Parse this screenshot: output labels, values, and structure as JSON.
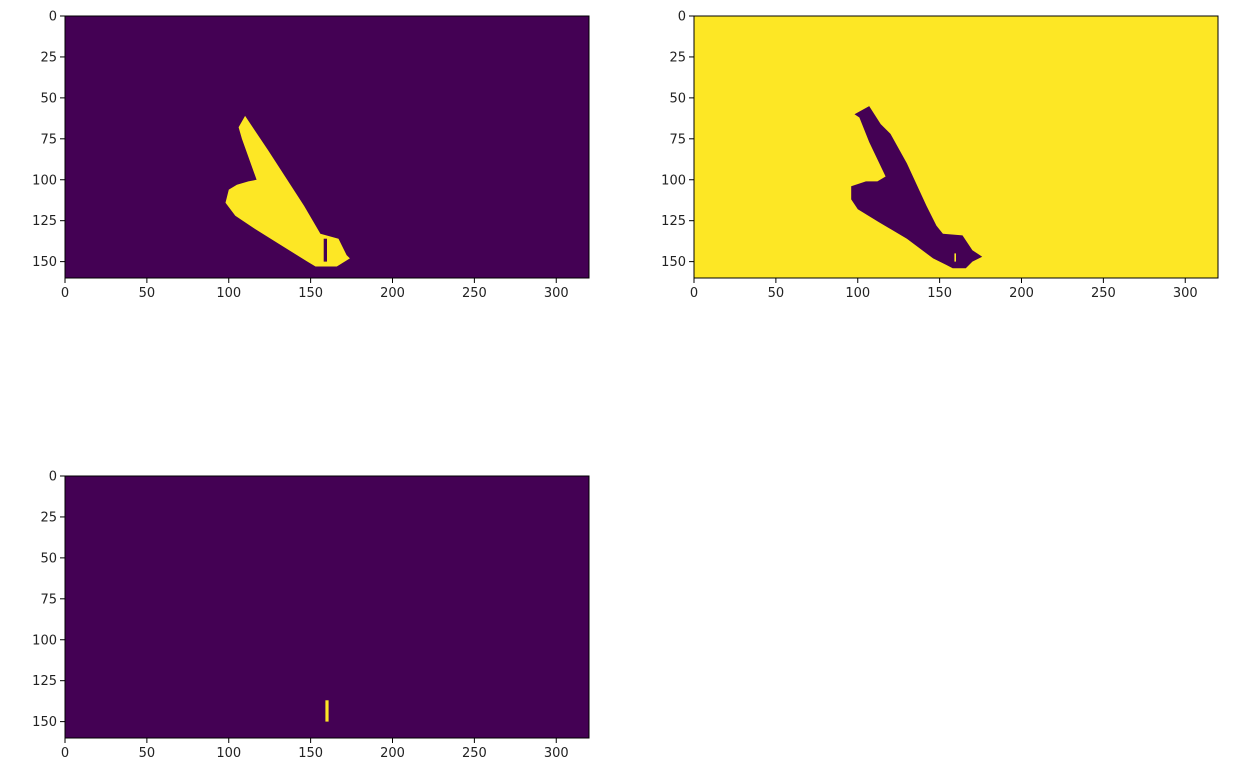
{
  "colors": {
    "background": "#440154",
    "foreground": "#fde725",
    "axis": "#000000",
    "tick_text": "#222222"
  },
  "chart_data": [
    {
      "type": "heatmap",
      "id": "top-left",
      "colormap": "viridis binary mask",
      "background_value": 0,
      "foreground_value": 1,
      "xlim": [
        0,
        320
      ],
      "ylim": [
        160,
        0
      ],
      "x_ticks": [
        0,
        50,
        100,
        150,
        200,
        250,
        300
      ],
      "y_ticks": [
        0,
        25,
        50,
        75,
        100,
        125,
        150
      ],
      "regions": [
        {
          "fill": "foreground",
          "points": [
            [
              110,
              61
            ],
            [
              124,
              82
            ],
            [
              146,
              116
            ],
            [
              156,
              133
            ],
            [
              167,
              136
            ],
            [
              172,
              146
            ],
            [
              174,
              148
            ],
            [
              166,
              153
            ],
            [
              153,
              153
            ],
            [
              148,
              150
            ],
            [
              132,
              140
            ],
            [
              116,
              130
            ],
            [
              104,
              122
            ],
            [
              98,
              114
            ],
            [
              100,
              106
            ],
            [
              105,
              103
            ],
            [
              112,
              101
            ],
            [
              117,
              100
            ],
            [
              108,
              75
            ],
            [
              106,
              68
            ]
          ]
        },
        {
          "fill": "background",
          "points": [
            [
              158,
              136
            ],
            [
              160,
              136
            ],
            [
              160,
              150
            ],
            [
              158,
              150
            ]
          ]
        }
      ]
    },
    {
      "type": "heatmap",
      "id": "top-right",
      "colormap": "viridis binary mask",
      "background_value": 1,
      "foreground_value": 0,
      "xlim": [
        0,
        320
      ],
      "ylim": [
        160,
        0
      ],
      "x_ticks": [
        0,
        50,
        100,
        150,
        200,
        250,
        300
      ],
      "y_ticks": [
        0,
        25,
        50,
        75,
        100,
        125,
        150
      ],
      "regions": [
        {
          "fill": "foreground",
          "points": [
            [
              107,
              55
            ],
            [
              114,
              66
            ],
            [
              120,
              72
            ],
            [
              130,
              90
            ],
            [
              142,
              116
            ],
            [
              148,
              128
            ],
            [
              152,
              133
            ],
            [
              164,
              134
            ],
            [
              170,
              143
            ],
            [
              176,
              147
            ],
            [
              170,
              150
            ],
            [
              166,
              154
            ],
            [
              158,
              154
            ],
            [
              154,
              152
            ],
            [
              146,
              148
            ],
            [
              130,
              136
            ],
            [
              113,
              126
            ],
            [
              100,
              118
            ],
            [
              96,
              112
            ],
            [
              96,
              104
            ],
            [
              105,
              101
            ],
            [
              112,
              101
            ],
            [
              117,
              98
            ],
            [
              107,
              77
            ],
            [
              101,
              62
            ],
            [
              98,
              60
            ]
          ]
        },
        {
          "fill": "background",
          "points": [
            [
              159,
              145
            ],
            [
              160,
              145
            ],
            [
              160,
              150
            ],
            [
              159,
              150
            ]
          ]
        }
      ]
    },
    {
      "type": "heatmap",
      "id": "bottom-left",
      "colormap": "viridis binary mask",
      "background_value": 0,
      "foreground_value": 1,
      "xlim": [
        0,
        320
      ],
      "ylim": [
        160,
        0
      ],
      "x_ticks": [
        0,
        50,
        100,
        150,
        200,
        250,
        300
      ],
      "y_ticks": [
        0,
        25,
        50,
        75,
        100,
        125,
        150
      ],
      "regions": [
        {
          "fill": "foreground",
          "points": [
            [
              159,
              137
            ],
            [
              161,
              137
            ],
            [
              161,
              150
            ],
            [
              159,
              150
            ]
          ]
        }
      ]
    }
  ]
}
